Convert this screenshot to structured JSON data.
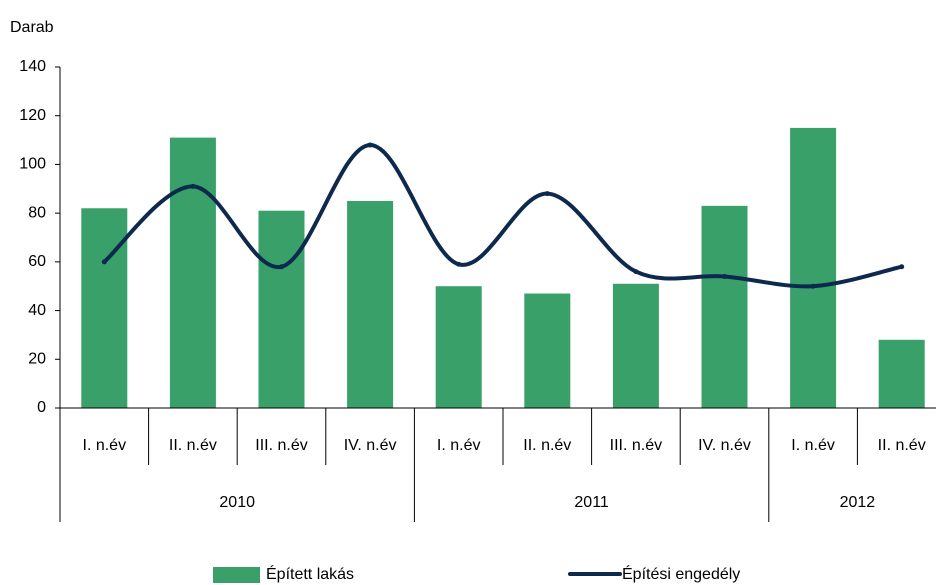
{
  "chart_data": {
    "type": "bar_line",
    "y_axis_label": "Darab",
    "categories": [
      "I. n.év",
      "II. n.év",
      "III. n.év",
      "IV. n.év",
      "I. n.év",
      "II. n.év",
      "III. n.év",
      "IV. n.év",
      "I. n.év",
      "II. n.év"
    ],
    "groups": [
      "2010",
      "2010",
      "2010",
      "2010",
      "2011",
      "2011",
      "2011",
      "2011",
      "2012",
      "2012"
    ],
    "series": [
      {
        "name": "Épített lakás",
        "type": "bar",
        "color": "#38a068",
        "values": [
          82,
          111,
          81,
          85,
          50,
          47,
          51,
          83,
          115,
          28
        ]
      },
      {
        "name": "Építési engedély",
        "type": "line",
        "smooth": true,
        "color": "#0d2a4e",
        "values": [
          60,
          91,
          58,
          108,
          59,
          88,
          56,
          54,
          50,
          58
        ]
      }
    ],
    "ylim": [
      0,
      140
    ],
    "yticks": [
      0,
      20,
      40,
      60,
      80,
      100,
      120,
      140
    ],
    "grid": false
  }
}
